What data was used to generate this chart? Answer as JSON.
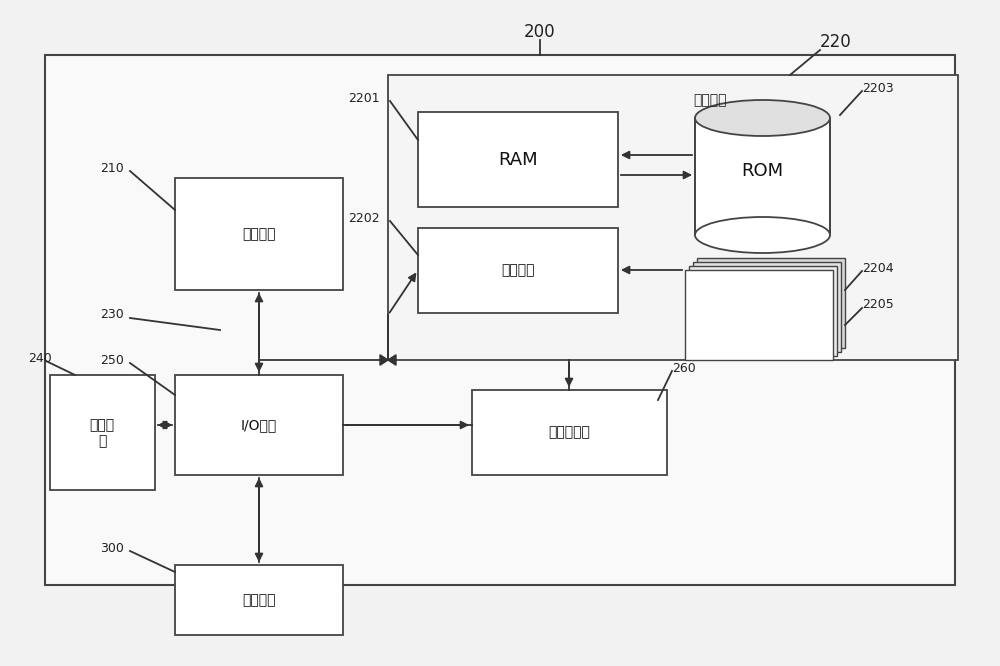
{
  "fig_bg": "#f2f2f2",
  "outer_bg": "#f9f9f9",
  "box_color": "#ffffff",
  "box_edge": "#444444",
  "line_color": "#333333",
  "title_200": "200",
  "title_220": "220",
  "label_220_text": "存储单元",
  "label_RAM": "RAM",
  "label_cache": "高速缓存",
  "label_ROM": "ROM",
  "label_CPU": "处理单元",
  "label_IO": "I/O接口",
  "label_display": "显示单\n元",
  "label_network": "网络适配器",
  "label_external": "外部设备",
  "ref_2201": "2201",
  "ref_2202": "2202",
  "ref_2203": "2203",
  "ref_2204": "2204",
  "ref_2205": "2205",
  "ref_210": "210",
  "ref_230": "230",
  "ref_240": "240",
  "ref_250": "250",
  "ref_260": "260",
  "ref_300": "300"
}
